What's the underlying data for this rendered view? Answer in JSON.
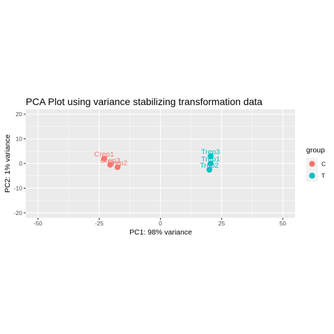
{
  "chart_data": {
    "type": "scatter",
    "title": "PCA Plot using variance stabilizing transformation data",
    "xlabel": "PC1: 98% variance",
    "ylabel": "PC2: 1% variance",
    "xlim": [
      -55,
      55
    ],
    "ylim": [
      -22,
      22
    ],
    "x_ticks": [
      -50,
      -25,
      0,
      25,
      50
    ],
    "x_tick_labels": [
      "-50",
      "-25",
      "0",
      "25",
      "50"
    ],
    "y_ticks": [
      -20,
      -10,
      0,
      10,
      20
    ],
    "y_tick_labels": [
      "-20",
      "-10",
      "0",
      "10",
      "20"
    ],
    "grid": true,
    "legend": {
      "title": "group",
      "position": "right",
      "entries": [
        {
          "label": "C",
          "color": "#F8766D"
        },
        {
          "label": "T",
          "color": "#00BFC4"
        }
      ]
    },
    "series": [
      {
        "name": "C",
        "color": "#F8766D",
        "points": [
          {
            "label": "Crep1",
            "x": -23,
            "y": 2
          },
          {
            "label": "Crep3",
            "x": -20.5,
            "y": -0.5
          },
          {
            "label": "Crep2",
            "x": -17.5,
            "y": -1.5
          }
        ]
      },
      {
        "name": "T",
        "color": "#00BFC4",
        "points": [
          {
            "label": "Trep3",
            "x": 20.5,
            "y": 3
          },
          {
            "label": "Trep1",
            "x": 20.5,
            "y": 0
          },
          {
            "label": "Trep2",
            "x": 20,
            "y": -2.5
          }
        ]
      }
    ]
  }
}
